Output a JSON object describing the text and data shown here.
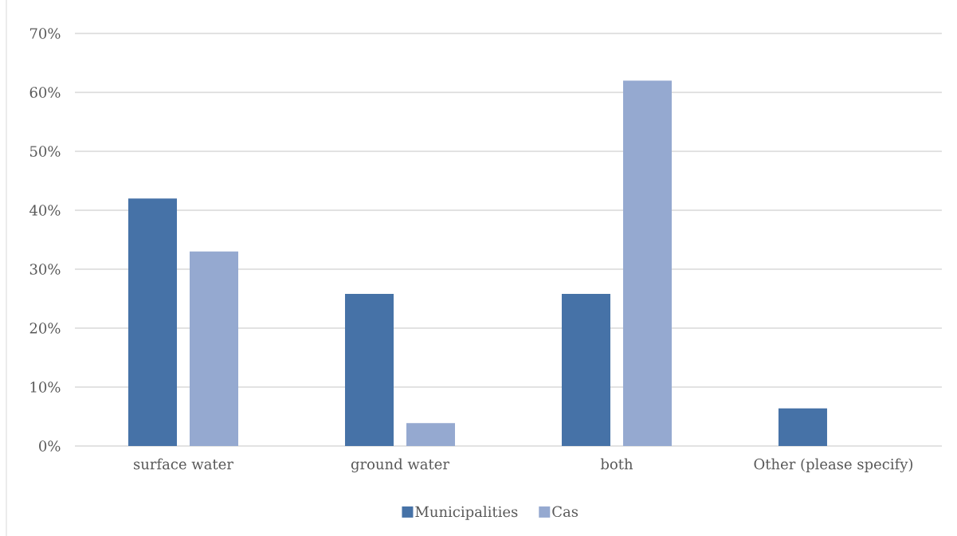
{
  "chart_data": {
    "type": "bar",
    "categories": [
      "surface water",
      "ground water",
      "both",
      "Other (please specify)"
    ],
    "series": [
      {
        "name": "Municipalities",
        "color": "#4672a7",
        "values": [
          42,
          25.8,
          25.8,
          6.4
        ]
      },
      {
        "name": "Cas",
        "color": "#95a9d0",
        "values": [
          33,
          3.9,
          62,
          null
        ]
      }
    ],
    "ylim": [
      0,
      70
    ],
    "yticks": [
      {
        "value": 0,
        "label": "0%"
      },
      {
        "value": 10,
        "label": "10%"
      },
      {
        "value": 20,
        "label": "20%"
      },
      {
        "value": 30,
        "label": "30%"
      },
      {
        "value": 40,
        "label": "40%"
      },
      {
        "value": 50,
        "label": "50%"
      },
      {
        "value": 60,
        "label": "60%"
      },
      {
        "value": 70,
        "label": "70%"
      }
    ],
    "grid": "y",
    "legend": "bottom"
  }
}
